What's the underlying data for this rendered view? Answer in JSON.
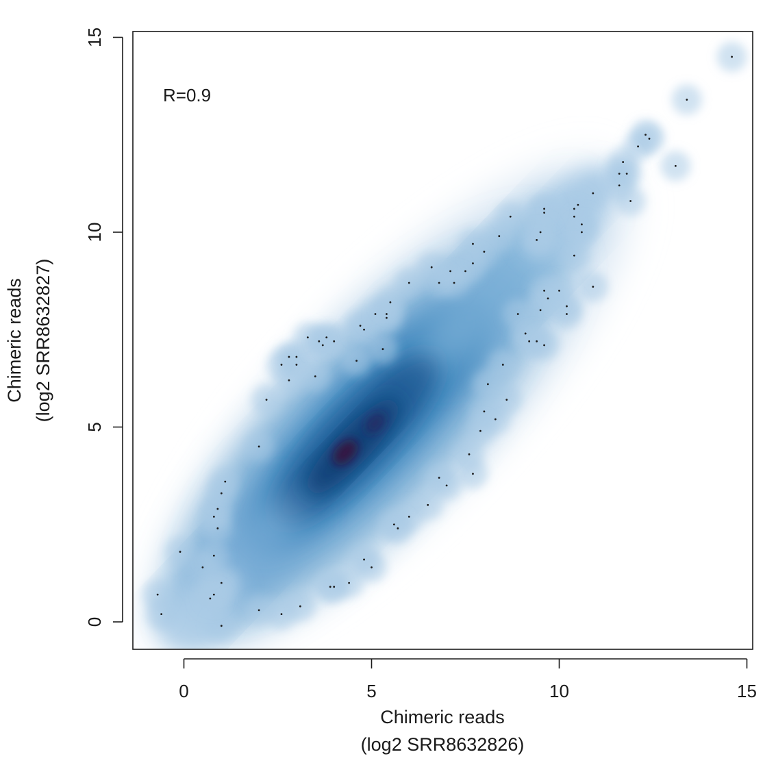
{
  "chart_data": {
    "type": "scatter",
    "title": "",
    "xlabel": [
      "Chimeric reads",
      "(log2 SRR8632826)"
    ],
    "ylabel": [
      "Chimeric reads",
      "(log2 SRR8632827)"
    ],
    "xlim": [
      -1.3,
      15.2
    ],
    "ylim": [
      -0.7,
      15.1
    ],
    "xticks": [
      0,
      5,
      10,
      15
    ],
    "yticks": [
      0,
      5,
      10,
      15
    ],
    "annotation": "R=0.9",
    "style": "smoothScatter",
    "colors": {
      "density_light": "#dbe8f3",
      "density_mid": "#3f86bc",
      "density_dark": "#123f73",
      "density_peak": "#3b0f3a",
      "points": "#1a1a1a",
      "axis": "#1a1a1a"
    },
    "outlier_points": [
      [
        14.6,
        14.5
      ],
      [
        13.4,
        13.4
      ],
      [
        13.1,
        11.7
      ],
      [
        12.3,
        12.5
      ],
      [
        12.4,
        12.4
      ],
      [
        12.1,
        12.2
      ],
      [
        11.7,
        11.8
      ],
      [
        11.8,
        11.5
      ],
      [
        11.6,
        11.5
      ],
      [
        11.6,
        11.2
      ],
      [
        11.9,
        10.8
      ],
      [
        10.9,
        11.0
      ],
      [
        10.5,
        10.7
      ],
      [
        10.4,
        10.6
      ],
      [
        10.4,
        10.4
      ],
      [
        10.6,
        10.2
      ],
      [
        10.6,
        10.0
      ],
      [
        10.4,
        9.4
      ],
      [
        10.9,
        8.6
      ],
      [
        10.2,
        8.1
      ],
      [
        10.2,
        7.9
      ],
      [
        9.6,
        10.6
      ],
      [
        9.6,
        10.5
      ],
      [
        9.4,
        9.8
      ],
      [
        9.5,
        10.0
      ],
      [
        8.7,
        10.4
      ],
      [
        8.4,
        9.9
      ],
      [
        8.0,
        9.5
      ],
      [
        7.7,
        9.7
      ],
      [
        7.7,
        9.2
      ],
      [
        7.5,
        9.0
      ],
      [
        7.1,
        9.0
      ],
      [
        6.8,
        8.7
      ],
      [
        7.2,
        8.7
      ],
      [
        6.6,
        9.1
      ],
      [
        6.0,
        8.7
      ],
      [
        9.7,
        8.3
      ],
      [
        9.6,
        8.5
      ],
      [
        9.5,
        8.0
      ],
      [
        10.0,
        8.5
      ],
      [
        8.9,
        7.9
      ],
      [
        9.1,
        7.4
      ],
      [
        9.2,
        7.2
      ],
      [
        9.4,
        7.2
      ],
      [
        9.6,
        7.1
      ],
      [
        8.5,
        6.6
      ],
      [
        8.6,
        5.7
      ],
      [
        8.3,
        5.2
      ],
      [
        8.0,
        5.4
      ],
      [
        7.9,
        4.9
      ],
      [
        8.1,
        6.1
      ],
      [
        7.6,
        4.3
      ],
      [
        7.7,
        3.8
      ],
      [
        6.8,
        3.7
      ],
      [
        7.0,
        3.5
      ],
      [
        6.5,
        3.0
      ],
      [
        6.0,
        2.7
      ],
      [
        5.6,
        2.5
      ],
      [
        5.7,
        2.4
      ],
      [
        5.0,
        1.4
      ],
      [
        4.8,
        1.6
      ],
      [
        4.4,
        1.0
      ],
      [
        4.0,
        0.9
      ],
      [
        3.9,
        0.9
      ],
      [
        3.1,
        0.4
      ],
      [
        2.6,
        0.2
      ],
      [
        2.0,
        0.3
      ],
      [
        1.0,
        -0.1
      ],
      [
        1.0,
        1.0
      ],
      [
        0.8,
        0.7
      ],
      [
        0.7,
        0.6
      ],
      [
        0.5,
        1.4
      ],
      [
        0.8,
        1.7
      ],
      [
        -0.1,
        1.8
      ],
      [
        -0.7,
        0.7
      ],
      [
        -0.6,
        0.2
      ],
      [
        0.9,
        2.4
      ],
      [
        0.9,
        2.9
      ],
      [
        0.8,
        2.7
      ],
      [
        1.0,
        3.3
      ],
      [
        1.1,
        3.6
      ],
      [
        2.2,
        5.7
      ],
      [
        2.6,
        6.6
      ],
      [
        2.8,
        6.8
      ],
      [
        3.0,
        6.8
      ],
      [
        3.0,
        6.6
      ],
      [
        2.8,
        6.2
      ],
      [
        3.3,
        7.3
      ],
      [
        3.6,
        7.2
      ],
      [
        3.7,
        7.1
      ],
      [
        3.8,
        7.3
      ],
      [
        4.0,
        7.2
      ],
      [
        4.7,
        7.6
      ],
      [
        4.8,
        7.5
      ],
      [
        5.1,
        7.9
      ],
      [
        5.4,
        7.9
      ],
      [
        5.4,
        7.8
      ],
      [
        5.5,
        8.2
      ],
      [
        5.3,
        7.0
      ],
      [
        4.6,
        6.7
      ],
      [
        3.5,
        6.3
      ],
      [
        2.0,
        4.5
      ]
    ]
  }
}
